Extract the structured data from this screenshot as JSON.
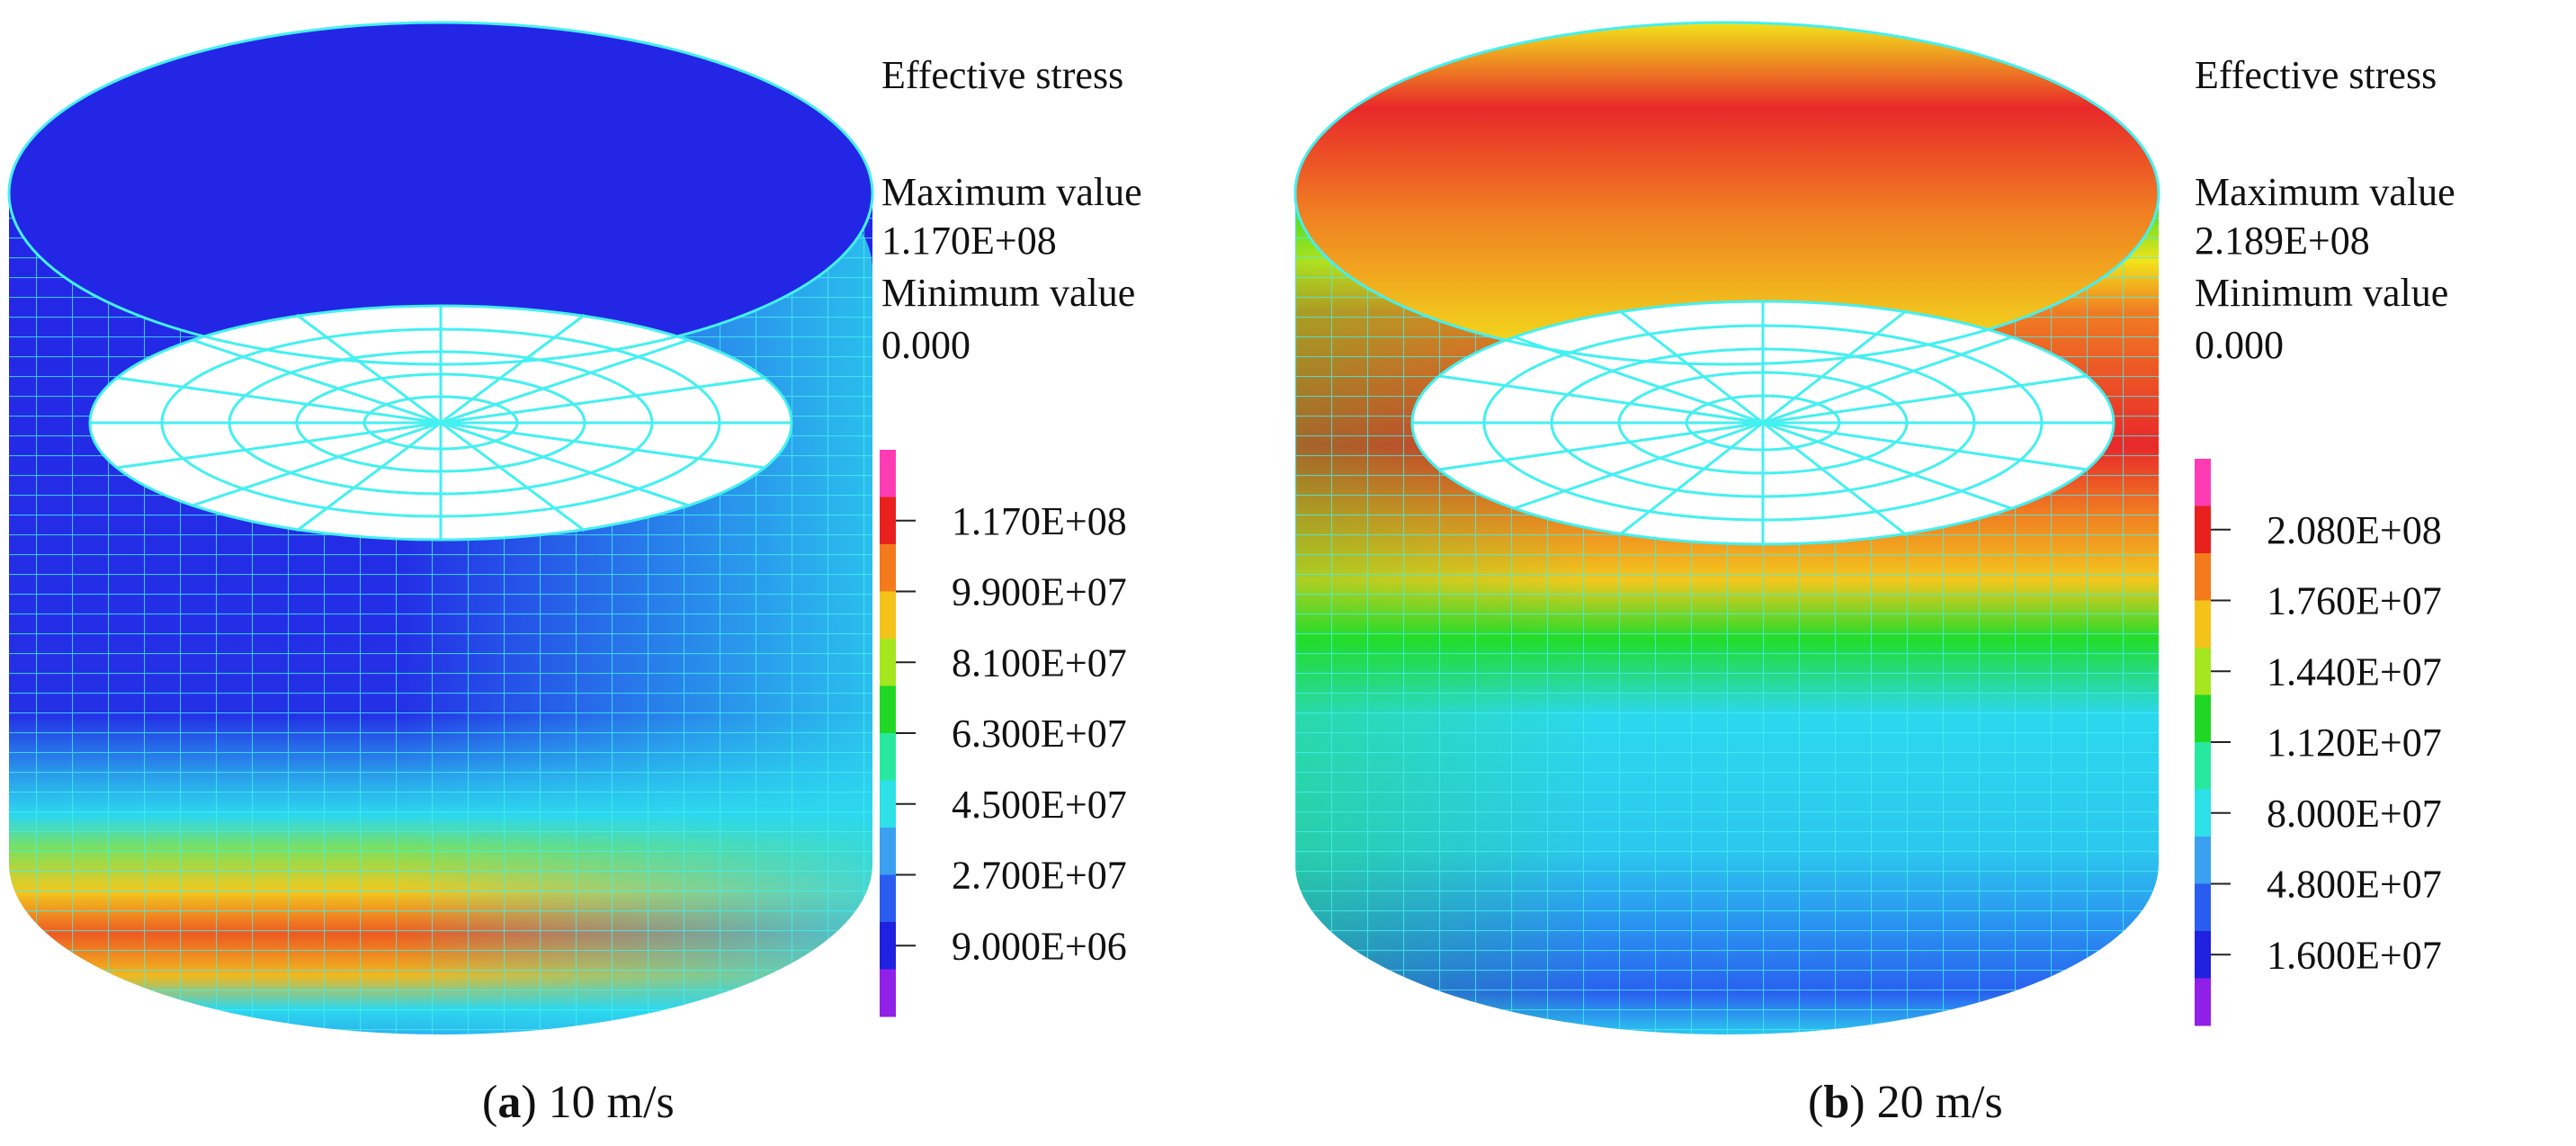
{
  "panels": [
    {
      "id": "a",
      "title": "Effective stress",
      "max_label": "Maximum value",
      "max_value": "1.170E+08",
      "min_label": "Minimum value",
      "min_value": "0.000",
      "legend_ticks": [
        "1.170E+08",
        "9.900E+07",
        "8.100E+07",
        "6.300E+07",
        "4.500E+07",
        "2.700E+07",
        "9.000E+06"
      ],
      "caption_letter": "a",
      "caption_text": " 10 m/s"
    },
    {
      "id": "b",
      "title": "Effective stress",
      "max_label": "Maximum value",
      "max_value": "2.189E+08",
      "min_label": "Minimum value",
      "min_value": "0.000",
      "legend_ticks": [
        "2.080E+08",
        "1.760E+07",
        "1.440E+07",
        "1.120E+07",
        "8.000E+07",
        "4.800E+07",
        "1.600E+07"
      ],
      "caption_letter": "b",
      "caption_text": " 20 m/s"
    }
  ],
  "legend_colors": [
    "#ff3cb4",
    "#e8201e",
    "#f47a1c",
    "#f5c21a",
    "#a6e61e",
    "#20d824",
    "#28e8a0",
    "#2ee0e8",
    "#3aa0f0",
    "#2a5cf0",
    "#2020e0",
    "#9020e8"
  ],
  "colors": {
    "mesh": "#44f0f0",
    "deep_blue": "#2426e6",
    "cyan": "#2cd8ee",
    "green": "#22dc2a",
    "yellow": "#f2e41a",
    "orange": "#f07d22",
    "red": "#e8282a"
  }
}
